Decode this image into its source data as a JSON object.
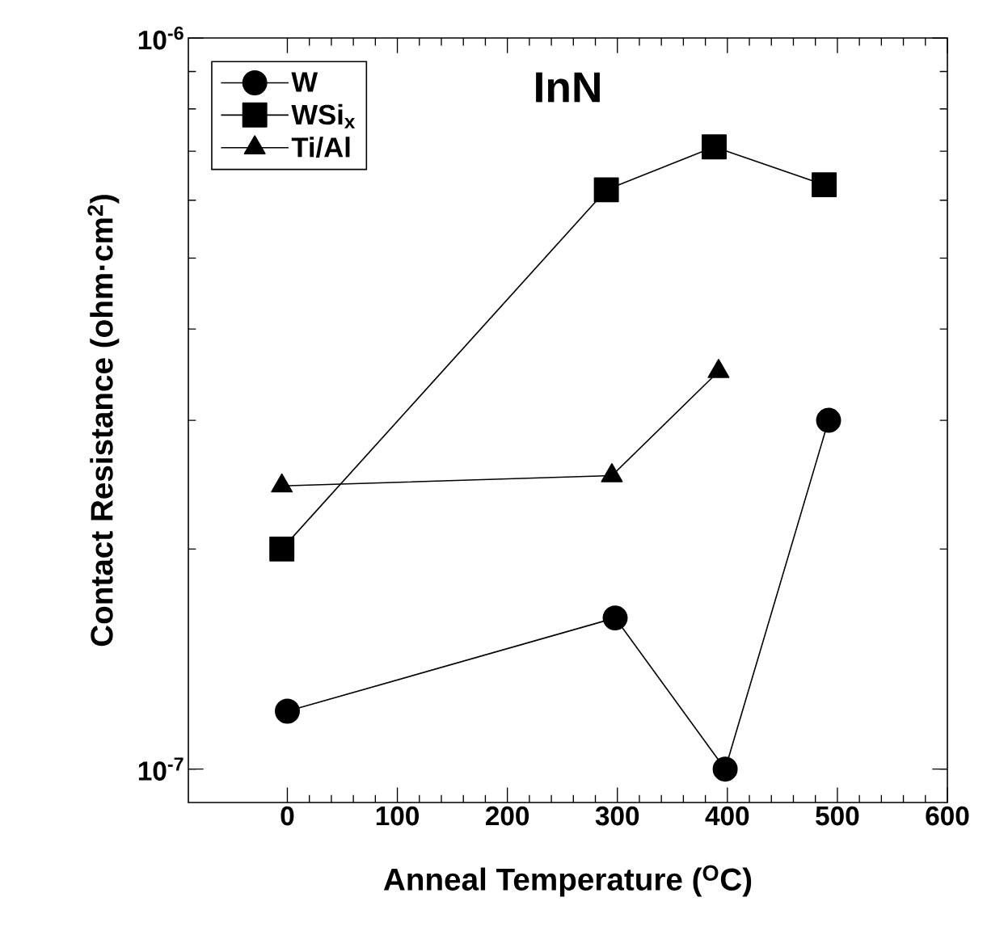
{
  "chart_data": {
    "type": "line",
    "log": "y",
    "annotations": [
      "InN"
    ],
    "xlabel": "Anneal Temperature ($^{O}$C)",
    "ylabel": "Contact Resistance (ohm·cm$^{2}$)",
    "xlim": [
      -90,
      600
    ],
    "xticks": [
      0,
      100,
      200,
      300,
      400,
      500,
      600
    ],
    "ylim": [
      9e-08,
      1e-06
    ],
    "yticks": [
      {
        "value": 1e-07,
        "label": "10$^{-7}$"
      },
      {
        "value": 1e-06,
        "label": "10$^{-6}$"
      }
    ],
    "legend": "top left",
    "grid": false,
    "series": [
      {
        "name": "W",
        "color": "#000000",
        "marker": "circle",
        "x": [
          0,
          298,
          398,
          492
        ],
        "values": [
          1.2e-07,
          1.61e-07,
          1e-07,
          3e-07
        ]
      },
      {
        "name": "WSi$_{x}$",
        "color": "#000000",
        "marker": "square",
        "x": [
          -5,
          290,
          388,
          488
        ],
        "values": [
          2e-07,
          6.2e-07,
          7.1e-07,
          6.3e-07
        ]
      },
      {
        "name": "Ti/Al",
        "color": "#000000",
        "marker": "triangle",
        "x": [
          -5,
          295,
          392
        ],
        "values": [
          2.44e-07,
          2.52e-07,
          3.5e-07
        ]
      }
    ]
  }
}
